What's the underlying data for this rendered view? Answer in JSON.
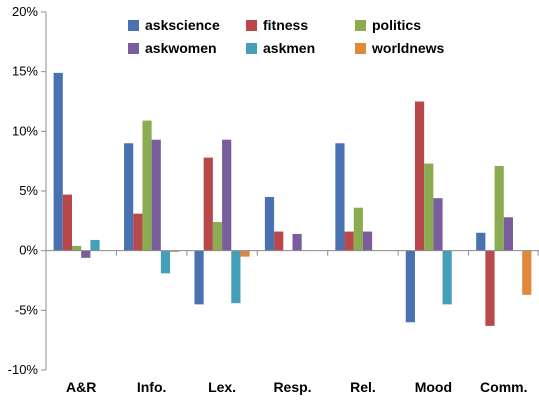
{
  "chart_data": {
    "type": "bar",
    "title": "",
    "xlabel": "",
    "ylabel": "",
    "ylim": [
      -10,
      20
    ],
    "yticks": [
      "-10%",
      "-5%",
      "0%",
      "5%",
      "10%",
      "15%",
      "20%"
    ],
    "ytick_values": [
      -10,
      -5,
      0,
      5,
      10,
      15,
      20
    ],
    "grid": false,
    "legend": "top",
    "categories": [
      "A&R",
      "Info.",
      "Lex.",
      "Resp.",
      "Rel.",
      "Mood",
      "Comm."
    ],
    "series": [
      {
        "name": "askscience",
        "color": "#4a72b0",
        "values": [
          14.9,
          9.0,
          -4.5,
          4.5,
          9.0,
          -6.0,
          1.5
        ]
      },
      {
        "name": "fitness",
        "color": "#b8484a",
        "values": [
          4.7,
          3.1,
          7.8,
          1.6,
          1.6,
          12.5,
          -6.3
        ]
      },
      {
        "name": "politics",
        "color": "#8cac52",
        "values": [
          0.4,
          10.9,
          2.4,
          0.0,
          3.6,
          7.3,
          7.1
        ]
      },
      {
        "name": "askwomen",
        "color": "#7a5d9c",
        "values": [
          -0.6,
          9.3,
          9.3,
          1.4,
          1.6,
          4.4,
          2.8
        ]
      },
      {
        "name": "askmen",
        "color": "#43a0b8",
        "values": [
          0.9,
          -1.9,
          -4.4,
          0.0,
          0.0,
          -4.5,
          0.0
        ]
      },
      {
        "name": "worldnews",
        "color": "#e0883c",
        "values": [
          0.0,
          -0.1,
          -0.5,
          0.0,
          0.0,
          0.0,
          -3.7
        ]
      }
    ]
  }
}
